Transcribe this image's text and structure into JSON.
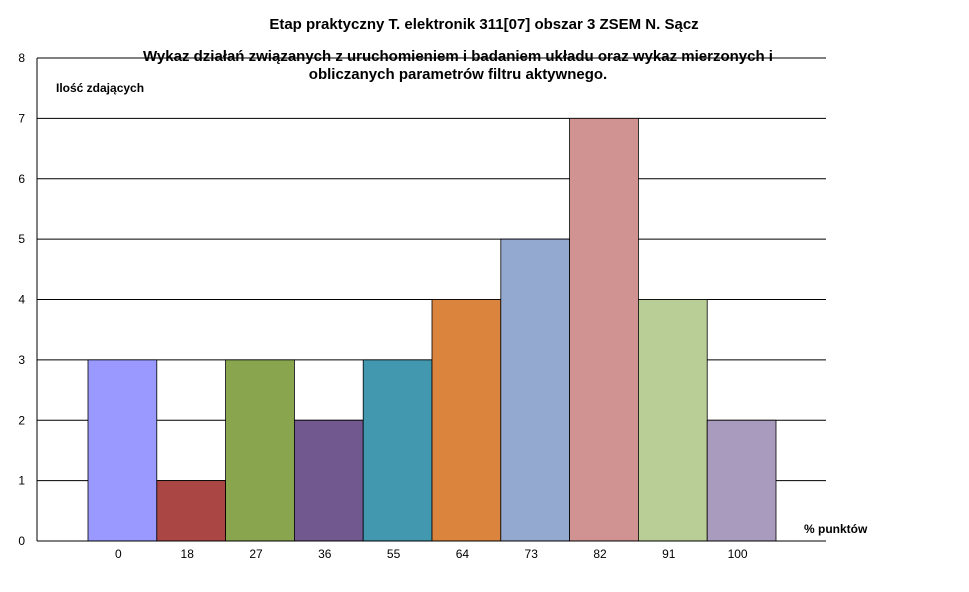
{
  "chart_data": {
    "type": "bar",
    "title": "Etap praktyczny T. elektronik 311[07] obszar 3 ZSEM N. Sącz",
    "subtitle_lines": [
      "Wykaz działań związanych z uruchomieniem i badaniem układu oraz wykaz mierzonych i",
      "obliczanych parametrów filtru aktywnego."
    ],
    "ylabel": "Ilość zdających",
    "xlabel": "% punktów",
    "ylim": [
      0,
      8
    ],
    "yticks": [
      0,
      1,
      2,
      3,
      4,
      5,
      6,
      7,
      8
    ],
    "grid": true,
    "categories": [
      "0",
      "18",
      "27",
      "36",
      "55",
      "64",
      "73",
      "82",
      "91",
      "100"
    ],
    "values": [
      3,
      1,
      3,
      2,
      3,
      4,
      5,
      7,
      4,
      2
    ],
    "colors": [
      "#9999FF",
      "#AA4643",
      "#89A54E",
      "#71588F",
      "#4198AF",
      "#DB843D",
      "#93A9CF",
      "#D19392",
      "#B9CD96",
      "#A99BBD"
    ]
  }
}
